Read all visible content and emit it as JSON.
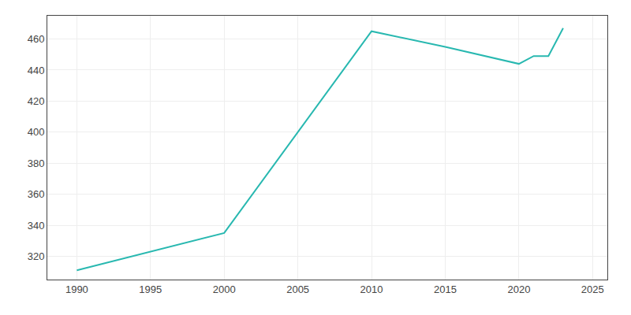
{
  "chart_data": {
    "type": "line",
    "x": [
      1990,
      2000,
      2010,
      2015,
      2020,
      2021,
      2022,
      2023
    ],
    "values": [
      311,
      335,
      465,
      455,
      444,
      449,
      449,
      467
    ],
    "color": "#28b8b0",
    "xlim": [
      1988,
      2026
    ],
    "xticks": [
      1990,
      1995,
      2000,
      2005,
      2010,
      2015,
      2020,
      2025
    ],
    "ylim": [
      305,
      475
    ],
    "yticks": [
      320,
      340,
      360,
      380,
      400,
      420,
      440,
      460
    ],
    "grid": true
  }
}
